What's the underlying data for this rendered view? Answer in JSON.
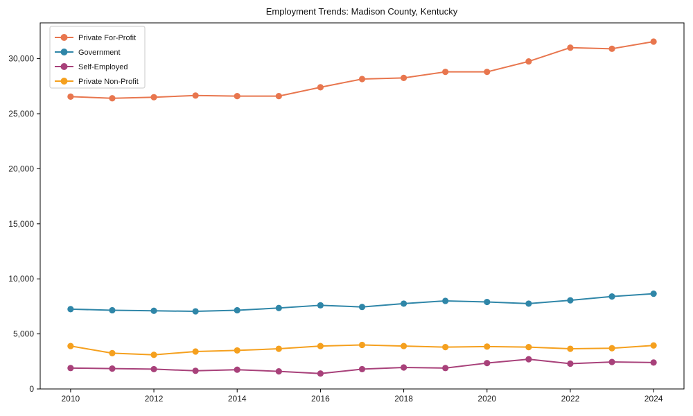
{
  "chart_data": {
    "type": "line",
    "title": "Employment Trends: Madison County, Kentucky",
    "xlabel": "",
    "ylabel": "",
    "x": [
      2010,
      2011,
      2012,
      2013,
      2014,
      2015,
      2016,
      2017,
      2018,
      2019,
      2020,
      2021,
      2022,
      2023,
      2024
    ],
    "series": [
      {
        "name": "Private For-Profit",
        "color": "#e8764e",
        "values": [
          26550,
          26400,
          26500,
          26650,
          26600,
          26600,
          27400,
          28150,
          28250,
          28800,
          28800,
          29750,
          31000,
          30900,
          31550
        ]
      },
      {
        "name": "Government",
        "color": "#2f86a8",
        "values": [
          7250,
          7150,
          7100,
          7050,
          7150,
          7350,
          7600,
          7450,
          7750,
          8000,
          7900,
          7750,
          8050,
          8400,
          8650
        ]
      },
      {
        "name": "Self-Employed",
        "color": "#a8417a",
        "values": [
          1900,
          1850,
          1800,
          1650,
          1750,
          1600,
          1400,
          1800,
          1950,
          1900,
          2350,
          2700,
          2300,
          2450,
          2400
        ]
      },
      {
        "name": "Private Non-Profit",
        "color": "#f5a01e",
        "values": [
          3900,
          3250,
          3100,
          3400,
          3500,
          3650,
          3900,
          4000,
          3900,
          3800,
          3850,
          3800,
          3650,
          3700,
          3950
        ]
      }
    ],
    "xticks": [
      2010,
      2012,
      2014,
      2016,
      2018,
      2020,
      2022,
      2024
    ],
    "xtick_labels": [
      "2010",
      "2012",
      "2014",
      "2016",
      "2018",
      "2020",
      "2022",
      "2024"
    ],
    "yticks": [
      0,
      5000,
      10000,
      15000,
      20000,
      25000,
      30000
    ],
    "ytick_labels": [
      "0",
      "5,000",
      "10,000",
      "15,000",
      "20,000",
      "25,000",
      "30,000"
    ],
    "xlim": [
      2009.27,
      2024.73
    ],
    "ylim": [
      0,
      33250
    ],
    "grid": false,
    "legend_position": "upper-left",
    "marker": "circle",
    "axis_color": "#000000",
    "text_color": "#1a1a1a",
    "background": "#ffffff"
  }
}
